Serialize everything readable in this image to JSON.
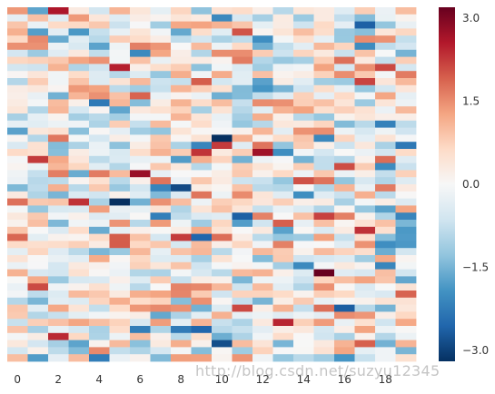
{
  "chart_data": {
    "type": "heatmap",
    "title": "",
    "xlabel": "",
    "ylabel": "",
    "columns": 20,
    "rows": 50,
    "x_tick_labels": [
      "0",
      "2",
      "4",
      "6",
      "8",
      "10",
      "12",
      "14",
      "16",
      "18"
    ],
    "y_tick_labels": [],
    "colormap": "RdBu_r",
    "vmin": -3.2,
    "vmax": 3.2,
    "colorbar_ticks": [
      "3.0",
      "1.5",
      "0.0",
      "−1.5",
      "−3.0"
    ],
    "colorbar_tick_values": [
      3.0,
      1.5,
      0.0,
      -1.5,
      -3.0
    ],
    "random_seed": 0,
    "sample_values": {
      "note_row0": [
        1.4,
        -1.7,
        2.6,
        0.3,
        -0.6,
        1.1,
        0.4,
        -0.3,
        0.7,
        -1.3,
        0.5,
        0.6,
        0.2,
        -0.9,
        0.4,
        0.3,
        -0.4,
        0.8,
        -0.2,
        1.0
      ]
    }
  },
  "watermark": "http://blog.csdn.net/suzyu12345"
}
